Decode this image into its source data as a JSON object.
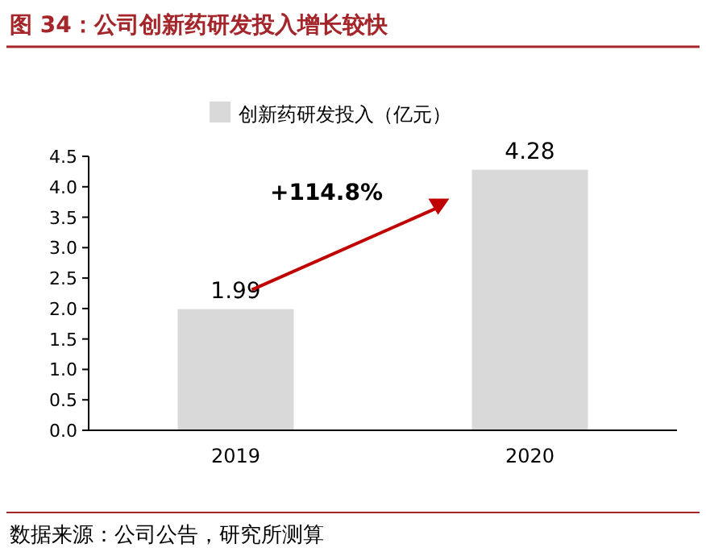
{
  "chart_data": {
    "type": "bar",
    "title": "图 34：公司创新药研发投入增长较快",
    "categories": [
      "2019",
      "2020"
    ],
    "series": [
      {
        "name": "创新药研发投入（亿元）",
        "color": "#d9d9d9",
        "values": [
          1.99,
          4.28
        ]
      }
    ],
    "ylim": [
      0,
      4.5
    ],
    "yticks": [
      {
        "value": 0,
        "label": "0.0"
      },
      {
        "value": 0.5,
        "label": "0.5"
      },
      {
        "value": 1,
        "label": "1.0"
      },
      {
        "value": 1.5,
        "label": "1.5"
      },
      {
        "value": 2,
        "label": "2.0"
      },
      {
        "value": 2.5,
        "label": "2.5"
      },
      {
        "value": 3,
        "label": "3.0"
      },
      {
        "value": 3.5,
        "label": "3.5"
      },
      {
        "value": 4,
        "label": "4.0"
      },
      {
        "value": 4.5,
        "label": "4.5"
      }
    ],
    "data_labels": true,
    "legend": "top",
    "grid": false,
    "annotations": [
      "+114.8%",
      "数据来源：公司公告，研究所测算"
    ]
  }
}
